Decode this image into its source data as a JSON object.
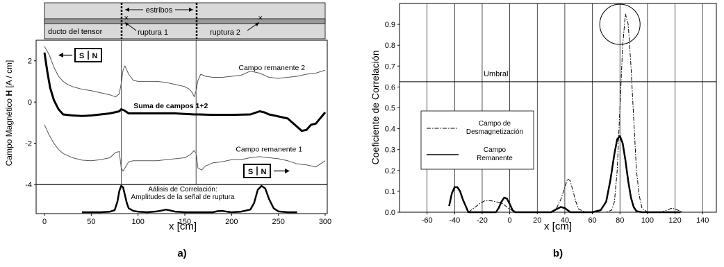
{
  "chart_data": [
    {
      "panel_label": "a)",
      "type": "line",
      "xlabel": "x [cm]",
      "ylabel_prefix": "Campo Magnético ",
      "ylabel_bold": "H",
      "ylabel_suffix": " [A / cm]",
      "xlim": [
        0,
        300
      ],
      "ylim": [
        -4,
        3
      ],
      "x_ticks": [
        0,
        50,
        100,
        150,
        200,
        250,
        300
      ],
      "y_ticks": [
        2,
        0,
        -2,
        -4
      ],
      "vertical_lines_x": [
        82,
        162
      ],
      "schematic": {
        "duct_label": "ducto del tensor",
        "stirrups_label": "estribos",
        "break1_label": "ruptura 1",
        "break2_label": "ruptura 2",
        "magnet_left": {
          "s": "S",
          "n": "N"
        },
        "magnet_right": {
          "s": "S",
          "n": "N"
        }
      },
      "series": [
        {
          "name": "Campo remanente 2",
          "bold": false,
          "x": [
            0,
            5,
            10,
            15,
            20,
            25,
            30,
            40,
            50,
            60,
            70,
            76,
            80,
            82,
            84,
            86,
            90,
            95,
            100,
            110,
            120,
            130,
            140,
            150,
            155,
            158,
            160,
            162,
            164,
            167,
            172,
            180,
            190,
            200,
            210,
            220,
            230,
            240,
            250,
            260,
            270,
            280,
            290,
            300
          ],
          "y": [
            2.7,
            2.3,
            1.7,
            1.25,
            1.0,
            0.85,
            0.75,
            0.62,
            0.55,
            0.45,
            0.35,
            0.25,
            0.4,
            0.9,
            1.55,
            1.75,
            1.35,
            1.05,
            1.0,
            1.0,
            1.0,
            0.95,
            0.85,
            0.75,
            0.62,
            0.45,
            0.25,
            0.55,
            1.05,
            1.35,
            1.25,
            1.2,
            1.2,
            1.25,
            1.3,
            1.5,
            1.4,
            1.2,
            1.15,
            1.2,
            1.25,
            1.35,
            1.4,
            1.55
          ]
        },
        {
          "name": "Suma de campos 1+2",
          "bold": true,
          "x": [
            0,
            3,
            6,
            10,
            15,
            20,
            30,
            40,
            50,
            60,
            70,
            80,
            82,
            85,
            90,
            100,
            120,
            140,
            160,
            165,
            180,
            200,
            220,
            230,
            235,
            240,
            250,
            260,
            270,
            275,
            280,
            285,
            290,
            300
          ],
          "y": [
            2.4,
            1.5,
            0.7,
            0.1,
            -0.35,
            -0.6,
            -0.65,
            -0.68,
            -0.65,
            -0.6,
            -0.55,
            -0.45,
            -0.35,
            -0.4,
            -0.55,
            -0.55,
            -0.55,
            -0.55,
            -0.6,
            -0.6,
            -0.62,
            -0.62,
            -0.6,
            -0.45,
            -0.5,
            -0.6,
            -0.7,
            -0.8,
            -1.2,
            -1.4,
            -1.35,
            -1.1,
            -1.05,
            -0.5
          ]
        },
        {
          "name": "Campo remanente 1",
          "bold": false,
          "x": [
            0,
            5,
            10,
            15,
            20,
            30,
            40,
            50,
            60,
            70,
            76,
            80,
            82,
            84,
            86,
            90,
            95,
            100,
            110,
            120,
            130,
            140,
            150,
            156,
            160,
            162,
            164,
            168,
            172,
            180,
            190,
            200,
            210,
            220,
            230,
            240,
            250,
            260,
            270,
            280,
            290,
            300
          ],
          "y": [
            -1.1,
            -1.6,
            -2.0,
            -2.3,
            -2.5,
            -2.7,
            -2.82,
            -2.85,
            -2.8,
            -2.7,
            -2.45,
            -2.4,
            -3.2,
            -3.35,
            -3.2,
            -2.9,
            -2.85,
            -2.85,
            -2.85,
            -2.85,
            -2.8,
            -2.75,
            -2.7,
            -2.55,
            -2.35,
            -2.5,
            -3.2,
            -3.3,
            -3.1,
            -2.95,
            -2.9,
            -2.8,
            -2.8,
            -2.7,
            -2.65,
            -2.7,
            -2.75,
            -2.85,
            -3.0,
            -3.05,
            -3.15,
            -2.85
          ]
        }
      ],
      "inset": {
        "title_line1": "Aálisis de Correlación:",
        "title_line2": "Amplitudes de la señal de ruptura",
        "x": [
          40,
          60,
          70,
          75,
          78,
          80,
          82,
          84,
          86,
          88,
          90,
          95,
          100,
          110,
          120,
          125,
          130,
          135,
          140,
          150,
          160,
          170,
          180,
          185,
          190,
          195,
          200,
          210,
          220,
          224,
          228,
          232,
          236,
          240,
          245,
          250,
          260,
          270
        ],
        "y": [
          0,
          0,
          0.02,
          0.08,
          0.4,
          0.8,
          1.0,
          0.95,
          0.65,
          0.35,
          0.15,
          0.05,
          0.02,
          0.0,
          0.03,
          0.06,
          0.1,
          0.06,
          0.02,
          0.0,
          0.0,
          0.0,
          0.0,
          0.04,
          0.05,
          0.02,
          0.0,
          0.02,
          0.1,
          0.35,
          0.85,
          1.0,
          0.9,
          0.5,
          0.15,
          0.03,
          0,
          0
        ]
      },
      "annotations": [
        {
          "text": "Campo remanente 2",
          "x": 243,
          "y": 1.55
        },
        {
          "text": "Suma de campos 1+2",
          "x": 135,
          "y": -0.3,
          "bold": true
        },
        {
          "text": "Campo remanente 1",
          "x": 240,
          "y": -2.4
        }
      ]
    },
    {
      "panel_label": "b)",
      "type": "line",
      "xlabel": "x [cm]",
      "ylabel": "Coeficiente de Correlación",
      "xlim": [
        -80,
        150
      ],
      "ylim": [
        0,
        1.0
      ],
      "x_ticks": [
        -60,
        -40,
        -20,
        0,
        20,
        40,
        60,
        80,
        100,
        120,
        140
      ],
      "y_ticks": [
        0.0,
        0.1,
        0.2,
        0.3,
        0.4,
        0.5,
        0.6,
        0.7,
        0.8,
        0.9
      ],
      "vertical_gridlines_x": [
        -60,
        -40,
        -20,
        0,
        20,
        40,
        60,
        80,
        100,
        120,
        140
      ],
      "threshold": {
        "label": "Umbral",
        "y": 0.625
      },
      "highlight_circle": {
        "x": 80,
        "y": 0.9
      },
      "legend": {
        "entries": [
          {
            "line1": "Campo de",
            "line2": "Desmagnetización",
            "style": "dashdot"
          },
          {
            "line1": "Campo",
            "line2": "Remanente",
            "style": "solid"
          }
        ]
      },
      "series": [
        {
          "name": "Campo de Desmagnetización",
          "style": "dashdot",
          "x": [
            -30,
            -26,
            -22,
            -18,
            -14,
            -10,
            -6,
            -3,
            0,
            3,
            6,
            10,
            20,
            30,
            34,
            37,
            40,
            42,
            44,
            46,
            48,
            50,
            55,
            60,
            65,
            70,
            74,
            76,
            78,
            80,
            82,
            84,
            86,
            88,
            90,
            92,
            94,
            96,
            100,
            105,
            110,
            114,
            118,
            122,
            126
          ],
          "y": [
            0.0,
            0.02,
            0.04,
            0.055,
            0.055,
            0.05,
            0.045,
            0.03,
            0.015,
            0.005,
            0.0,
            0.0,
            0.0,
            0.0,
            0.02,
            0.06,
            0.12,
            0.16,
            0.15,
            0.1,
            0.05,
            0.015,
            0.0,
            0.0,
            0.0,
            0.0,
            0.01,
            0.05,
            0.2,
            0.5,
            0.8,
            0.95,
            0.9,
            0.7,
            0.45,
            0.2,
            0.08,
            0.02,
            0.0,
            0.0,
            0.0,
            0.01,
            0.02,
            0.01,
            0.0
          ]
        },
        {
          "name": "Campo Remanente",
          "style": "solid",
          "x": [
            -44,
            -42,
            -40,
            -38,
            -36,
            -34,
            -32,
            -30,
            -10,
            -8,
            -6,
            -4,
            -2,
            0,
            2,
            4,
            6,
            10,
            20,
            30,
            34,
            37,
            40,
            42,
            44,
            50,
            60,
            66,
            70,
            73,
            76,
            78,
            80,
            82,
            84,
            86,
            88,
            90,
            92,
            96,
            100,
            110,
            120,
            124
          ],
          "y": [
            0.03,
            0.09,
            0.12,
            0.12,
            0.1,
            0.06,
            0.03,
            0.0,
            0.0,
            0.02,
            0.05,
            0.07,
            0.065,
            0.04,
            0.01,
            0.0,
            0.0,
            0.0,
            0.0,
            0.0,
            0.015,
            0.025,
            0.02,
            0.01,
            0.0,
            0.0,
            0.0,
            0.01,
            0.05,
            0.15,
            0.28,
            0.35,
            0.365,
            0.33,
            0.25,
            0.15,
            0.07,
            0.025,
            0.005,
            0.0,
            0.0,
            0.0,
            0.0,
            0.0
          ]
        }
      ]
    }
  ]
}
